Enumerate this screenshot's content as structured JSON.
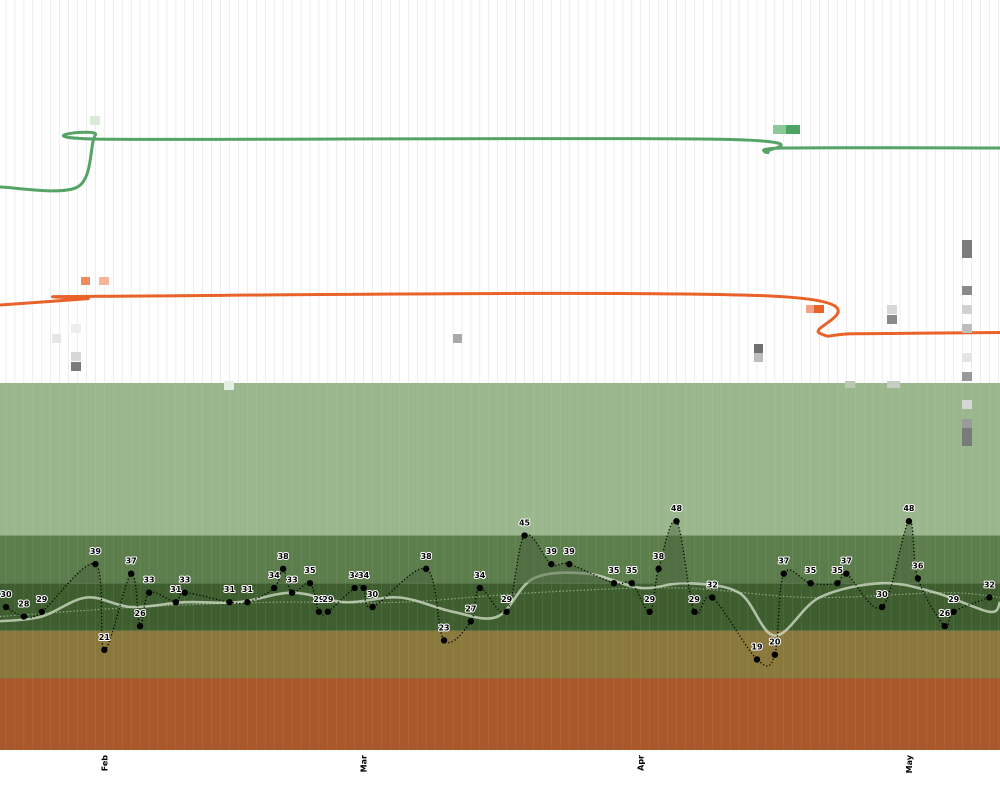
{
  "chart_data": {
    "type": "line",
    "title": "",
    "xlabel": "",
    "ylabel": "",
    "x_axis": {
      "months": [
        "Feb",
        "Mar",
        "Apr",
        "May"
      ],
      "start_date": "2024-01-21",
      "end_date": "2024-05-15"
    },
    "colors": {
      "band_top": "#9ab78e",
      "band_2": "#5c7d4c",
      "band_3": "#3e5e2f",
      "band_4": "#8a783c",
      "band_5": "#a8582b",
      "green_line": "#55a466",
      "orange_line": "#e8622a",
      "grid": "#e2e2e2"
    },
    "bands": [
      {
        "from": 45,
        "to": 77
      },
      {
        "from": 35,
        "to": 45
      },
      {
        "from": 25,
        "to": 35
      },
      {
        "from": 15,
        "to": 25
      },
      {
        "from": 0,
        "to": 15
      }
    ],
    "ylim": [
      0,
      77
    ],
    "series": [
      {
        "style": "dotted-with-labels",
        "points": [
          {
            "x": "2024-01-21",
            "y": 30
          },
          {
            "x": "2024-01-23",
            "y": 28
          },
          {
            "x": "2024-01-25",
            "y": 29
          },
          {
            "x": "2024-01-31",
            "y": 39
          },
          {
            "x": "2024-02-01",
            "y": 21
          },
          {
            "x": "2024-02-04",
            "y": 37
          },
          {
            "x": "2024-02-05",
            "y": 26
          },
          {
            "x": "2024-02-06",
            "y": 33
          },
          {
            "x": "2024-02-09",
            "y": 31
          },
          {
            "x": "2024-02-10",
            "y": 33
          },
          {
            "x": "2024-02-15",
            "y": 31
          },
          {
            "x": "2024-02-17",
            "y": 31
          },
          {
            "x": "2024-02-20",
            "y": 34
          },
          {
            "x": "2024-02-21",
            "y": 38
          },
          {
            "x": "2024-02-22",
            "y": 33
          },
          {
            "x": "2024-02-24",
            "y": 35
          },
          {
            "x": "2024-02-25",
            "y": 29
          },
          {
            "x": "2024-02-26",
            "y": 29
          },
          {
            "x": "2024-02-29",
            "y": 34
          },
          {
            "x": "2024-03-01",
            "y": 34
          },
          {
            "x": "2024-03-02",
            "y": 30
          },
          {
            "x": "2024-03-08",
            "y": 38
          },
          {
            "x": "2024-03-10",
            "y": 23
          },
          {
            "x": "2024-03-13",
            "y": 27
          },
          {
            "x": "2024-03-14",
            "y": 34
          },
          {
            "x": "2024-03-17",
            "y": 29
          },
          {
            "x": "2024-03-19",
            "y": 45
          },
          {
            "x": "2024-03-22",
            "y": 39
          },
          {
            "x": "2024-03-24",
            "y": 39
          },
          {
            "x": "2024-03-29",
            "y": 35
          },
          {
            "x": "2024-03-31",
            "y": 35
          },
          {
            "x": "2024-04-02",
            "y": 29
          },
          {
            "x": "2024-04-03",
            "y": 38
          },
          {
            "x": "2024-04-05",
            "y": 48
          },
          {
            "x": "2024-04-07",
            "y": 29
          },
          {
            "x": "2024-04-09",
            "y": 32
          },
          {
            "x": "2024-04-14",
            "y": 19
          },
          {
            "x": "2024-04-16",
            "y": 20
          },
          {
            "x": "2024-04-17",
            "y": 37
          },
          {
            "x": "2024-04-20",
            "y": 35
          },
          {
            "x": "2024-04-23",
            "y": 35
          },
          {
            "x": "2024-04-24",
            "y": 37
          },
          {
            "x": "2024-04-28",
            "y": 30
          },
          {
            "x": "2024-05-01",
            "y": 48
          },
          {
            "x": "2024-05-02",
            "y": 36
          },
          {
            "x": "2024-05-05",
            "y": 26
          },
          {
            "x": "2024-05-06",
            "y": 29
          },
          {
            "x": "2024-05-10",
            "y": 32
          }
        ]
      },
      {
        "style": "smooth-light",
        "points": [
          {
            "x": "2024-01-21",
            "y": 27
          },
          {
            "x": "2024-01-25",
            "y": 28
          },
          {
            "x": "2024-01-30",
            "y": 32
          },
          {
            "x": "2024-02-04",
            "y": 30
          },
          {
            "x": "2024-02-10",
            "y": 31
          },
          {
            "x": "2024-02-16",
            "y": 31
          },
          {
            "x": "2024-02-22",
            "y": 33
          },
          {
            "x": "2024-02-28",
            "y": 31
          },
          {
            "x": "2024-03-05",
            "y": 32
          },
          {
            "x": "2024-03-11",
            "y": 29
          },
          {
            "x": "2024-03-16",
            "y": 28
          },
          {
            "x": "2024-03-20",
            "y": 36
          },
          {
            "x": "2024-03-26",
            "y": 37
          },
          {
            "x": "2024-04-01",
            "y": 34
          },
          {
            "x": "2024-04-06",
            "y": 35
          },
          {
            "x": "2024-04-12",
            "y": 33
          },
          {
            "x": "2024-04-16",
            "y": 24
          },
          {
            "x": "2024-04-21",
            "y": 32
          },
          {
            "x": "2024-04-28",
            "y": 35
          },
          {
            "x": "2024-05-04",
            "y": 33
          },
          {
            "x": "2024-05-10",
            "y": 29
          },
          {
            "x": "2024-05-15",
            "y": 31
          }
        ]
      },
      {
        "style": "faint-dotted",
        "points": [
          {
            "x": "2024-01-21",
            "y": 28
          },
          {
            "x": "2024-02-05",
            "y": 30
          },
          {
            "x": "2024-02-20",
            "y": 31
          },
          {
            "x": "2024-03-05",
            "y": 31
          },
          {
            "x": "2024-03-20",
            "y": 33
          },
          {
            "x": "2024-04-05",
            "y": 34
          },
          {
            "x": "2024-04-20",
            "y": 32
          },
          {
            "x": "2024-05-05",
            "y": 33
          },
          {
            "x": "2024-05-15",
            "y": 32
          }
        ]
      },
      {
        "style": "green-upper",
        "points": [
          {
            "x": "2024-01-21",
            "y": 120
          },
          {
            "x": "2024-01-29",
            "y": 120
          },
          {
            "x": "2024-01-31",
            "y": 132
          },
          {
            "x": "2024-02-02",
            "y": 131
          },
          {
            "x": "2024-04-10",
            "y": 131
          },
          {
            "x": "2024-04-15",
            "y": 128
          },
          {
            "x": "2024-04-17",
            "y": 129
          },
          {
            "x": "2024-05-15",
            "y": 129
          }
        ]
      },
      {
        "style": "orange-upper",
        "points": [
          {
            "x": "2024-01-21",
            "y": 79
          },
          {
            "x": "2024-01-30",
            "y": 80
          },
          {
            "x": "2024-02-01",
            "y": 80.4
          },
          {
            "x": "2024-04-16",
            "y": 80.4
          },
          {
            "x": "2024-04-21",
            "y": 74.5
          },
          {
            "x": "2024-04-25",
            "y": 74.4
          },
          {
            "x": "2024-05-15",
            "y": 74.6
          }
        ]
      }
    ]
  }
}
